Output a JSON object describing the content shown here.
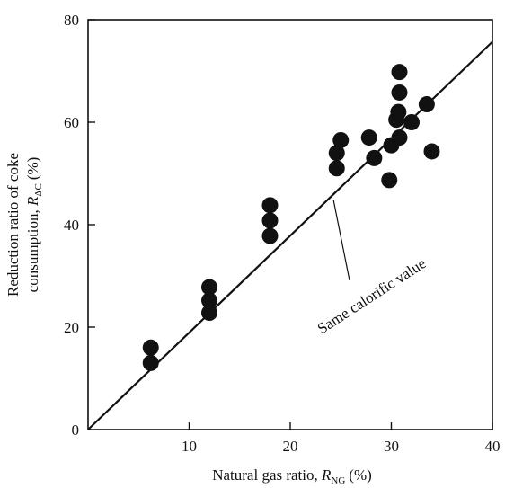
{
  "chart_data": {
    "type": "scatter",
    "title": "",
    "xlabel": "Natural gas ratio, ",
    "xlabel_symbol": "R",
    "xlabel_sub": "NG",
    "xlabel_unit": "(%)",
    "ylabel_line1": "Reduction ratio of coke",
    "ylabel_line2": "consumption, ",
    "ylabel_symbol": "R",
    "ylabel_sub": "ΔC",
    "ylabel_unit": "(%)",
    "xlim": [
      0,
      40
    ],
    "ylim": [
      0,
      80
    ],
    "xticks": [
      10,
      20,
      30,
      40
    ],
    "yticks": [
      0,
      20,
      40,
      60,
      80
    ],
    "grid": false,
    "points": [
      {
        "x": 6.2,
        "y": 16.0
      },
      {
        "x": 6.2,
        "y": 13.0
      },
      {
        "x": 12.0,
        "y": 27.8
      },
      {
        "x": 12.0,
        "y": 25.2
      },
      {
        "x": 12.0,
        "y": 22.8
      },
      {
        "x": 18.0,
        "y": 43.8
      },
      {
        "x": 18.0,
        "y": 40.8
      },
      {
        "x": 18.0,
        "y": 37.8
      },
      {
        "x": 24.6,
        "y": 54.0
      },
      {
        "x": 24.6,
        "y": 51.0
      },
      {
        "x": 25.0,
        "y": 56.5
      },
      {
        "x": 27.8,
        "y": 57.0
      },
      {
        "x": 28.3,
        "y": 53.0
      },
      {
        "x": 29.8,
        "y": 48.7
      },
      {
        "x": 30.0,
        "y": 55.5
      },
      {
        "x": 30.5,
        "y": 60.5
      },
      {
        "x": 30.7,
        "y": 62.0
      },
      {
        "x": 30.8,
        "y": 57.0
      },
      {
        "x": 30.8,
        "y": 65.8
      },
      {
        "x": 30.8,
        "y": 69.8
      },
      {
        "x": 32.0,
        "y": 60.0
      },
      {
        "x": 33.5,
        "y": 63.5
      },
      {
        "x": 34.0,
        "y": 54.3
      }
    ],
    "reference_line": {
      "label": "Same calorific value",
      "x": [
        0,
        40
      ],
      "y": [
        0,
        75.7
      ]
    },
    "marker_color": "#111111"
  }
}
